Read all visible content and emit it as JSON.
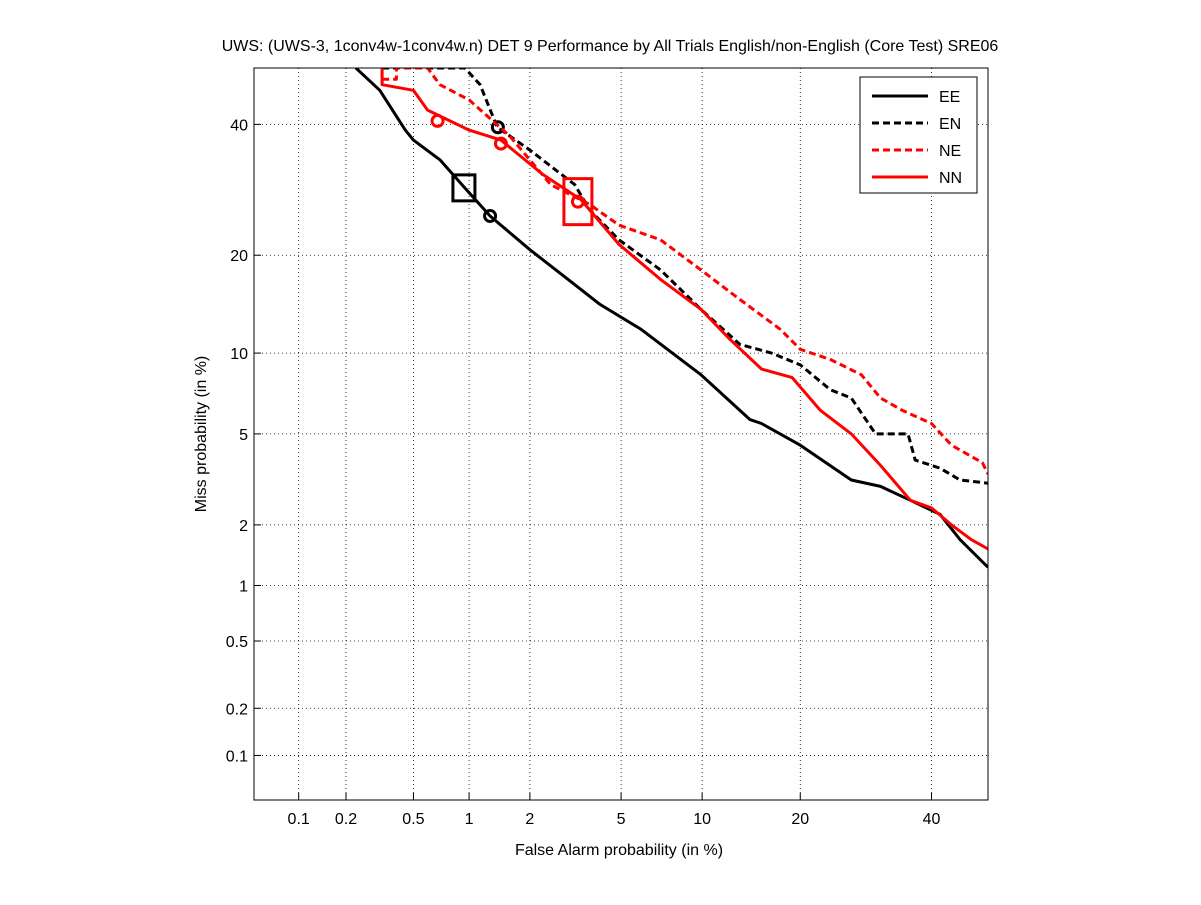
{
  "chart_data": {
    "type": "line",
    "title": "UWS: (UWS-3, 1conv4w-1conv4w.n) DET 9 Performance by All Trials English/non-English (Core Test) SRE06",
    "xlabel": "False Alarm probability (in %)",
    "ylabel": "Miss probability (in %)",
    "xscale": "normal-deviate",
    "yscale": "normal-deviate",
    "xlim": [
      0.05,
      50
    ],
    "ylim": [
      0.05,
      50
    ],
    "xticks": [
      0.1,
      0.2,
      0.5,
      1,
      2,
      5,
      10,
      20,
      40
    ],
    "xtick_labels": [
      "0.1",
      "0.2",
      "0.5",
      "1",
      "2",
      "5",
      "10",
      "20",
      "40"
    ],
    "yticks": [
      0.1,
      0.2,
      0.5,
      1,
      2,
      5,
      10,
      20,
      40
    ],
    "ytick_labels": [
      "0.1",
      "0.2",
      "0.5",
      "1",
      "2",
      "5",
      "10",
      "20",
      "40"
    ],
    "grid": true,
    "legend_position": "top-right",
    "series": [
      {
        "name": "EE",
        "color": "#000000",
        "dash": false,
        "x": [
          0.23,
          0.32,
          0.45,
          0.5,
          0.7,
          0.95,
          1.28,
          2,
          3.2,
          4.1,
          6,
          9.9,
          14.3,
          15.5,
          20,
          27,
          31.5,
          36.4,
          41.5,
          45,
          50
        ],
        "y": [
          50,
          46,
          39,
          37.3,
          34,
          29.5,
          25.3,
          20.7,
          16.5,
          14.4,
          12,
          8.4,
          5.7,
          5.5,
          4.5,
          3.2,
          3,
          2.6,
          2.24,
          1.7,
          1.24
        ],
        "markers": [
          {
            "shape": "circle",
            "x": 1.28,
            "y": 25.3
          },
          {
            "shape": "square",
            "x": 0.94,
            "y": 29.5
          }
        ]
      },
      {
        "name": "EN",
        "color": "#000000",
        "dash": true,
        "x": [
          0.33,
          0.95,
          1.14,
          1.39,
          2,
          3.2,
          3.7,
          4.9,
          7.1,
          9.9,
          13.3,
          16.6,
          20,
          24,
          27,
          30.7,
          36,
          37.2,
          41.5,
          45,
          50
        ],
        "y": [
          50,
          50,
          47,
          39.5,
          35.6,
          30,
          26.2,
          22,
          18.2,
          13.9,
          10.7,
          10,
          9.1,
          7.4,
          6.9,
          5,
          5,
          3.9,
          3.6,
          3.2,
          3.1
        ],
        "markers": [
          {
            "shape": "circle",
            "x": 1.4,
            "y": 39.5
          }
        ]
      },
      {
        "name": "NE",
        "color": "#ff0000",
        "dash": true,
        "x": [
          0.33,
          0.4,
          0.4,
          0.6,
          0.7,
          1,
          1.6,
          2.5,
          3.7,
          4.9,
          7.1,
          9.9,
          13.3,
          17.6,
          20,
          24,
          28.5,
          31.5,
          35,
          40,
          43.5,
          49,
          50
        ],
        "y": [
          48,
          48,
          50,
          50,
          47,
          44.3,
          38,
          30,
          27,
          24,
          22,
          18.2,
          14.9,
          12,
          10.3,
          9.5,
          8.4,
          6.9,
          6.2,
          5.5,
          4.5,
          3.8,
          3.4
        ],
        "markers": [
          {
            "shape": "circle",
            "x": 1.45,
            "y": 36.7
          }
        ]
      },
      {
        "name": "NN",
        "color": "#ff0000",
        "dash": false,
        "x": [
          0.33,
          0.33,
          0.5,
          0.6,
          1,
          1.45,
          2.3,
          3.4,
          4.9,
          7.1,
          9.9,
          12.4,
          15.5,
          19,
          22.6,
          27,
          31.5,
          36.4,
          40,
          43.5,
          47,
          50
        ],
        "y": [
          50,
          47,
          46,
          42.5,
          39,
          37.3,
          31.6,
          27.7,
          21.4,
          17.1,
          13.9,
          11.1,
          8.8,
          8.2,
          6.2,
          5,
          3.7,
          2.6,
          2.4,
          2,
          1.7,
          1.53
        ],
        "markers": [
          {
            "shape": "circle",
            "x": 0.68,
            "y": 40.6
          },
          {
            "shape": "circle",
            "x": 3.3,
            "y": 27.4
          },
          {
            "shape": "square",
            "x": 3.3,
            "y": 27.4
          }
        ]
      }
    ]
  }
}
